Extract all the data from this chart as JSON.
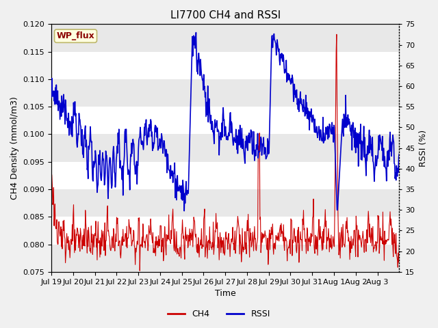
{
  "title": "LI7700 CH4 and RSSI",
  "xlabel": "Time",
  "ylabel_left": "CH4 Density (mmol/m3)",
  "ylabel_right": "RSSI (%)",
  "site_label": "WP_flux",
  "ylim_left": [
    0.075,
    0.12
  ],
  "ylim_right": [
    15,
    75
  ],
  "yticks_left": [
    0.075,
    0.08,
    0.085,
    0.09,
    0.095,
    0.1,
    0.105,
    0.11,
    0.115,
    0.12
  ],
  "yticks_right": [
    15,
    20,
    25,
    30,
    35,
    40,
    45,
    50,
    55,
    60,
    65,
    70,
    75
  ],
  "ch4_color": "#cc0000",
  "rssi_color": "#0000cc",
  "bg_color": "#f0f0f0",
  "plot_bg": "#ffffff",
  "band_color_light": "#e8e8e8",
  "band_color_dark": "#ffffff",
  "legend_ch4": "CH4",
  "legend_rssi": "RSSI",
  "xtick_labels": [
    "Jul 19",
    "Jul 20",
    "Jul 21",
    "Jul 22",
    "Jul 23",
    "Jul 24",
    "Jul 25",
    "Jul 26",
    "Jul 27",
    "Jul 28",
    "Jul 29",
    "Jul 30",
    "Jul 31",
    "Aug 1",
    "Aug 2",
    "Aug 3"
  ],
  "title_fontsize": 11,
  "label_fontsize": 9,
  "tick_fontsize": 8
}
